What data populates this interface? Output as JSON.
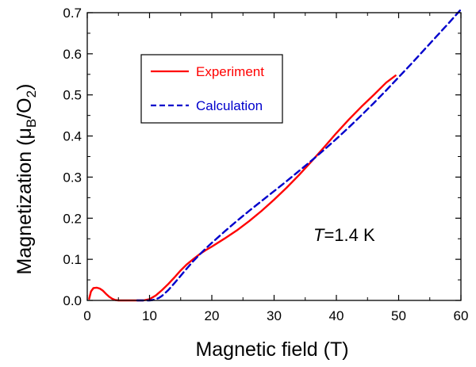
{
  "chart_data": {
    "type": "line",
    "xlabel": "Magnetic field (T)",
    "ylabel": {
      "main": "Magnetization (",
      "mu": "μ",
      "sub1": "B",
      "slash": "/O",
      "sub2": "2",
      "close": ")"
    },
    "xlim": [
      0,
      60
    ],
    "ylim": [
      0,
      0.7
    ],
    "xticks": [
      0,
      10,
      20,
      30,
      40,
      50,
      60
    ],
    "xtick_labels": [
      "0",
      "10",
      "20",
      "30",
      "40",
      "50",
      "60"
    ],
    "yticks": [
      0,
      0.1,
      0.2,
      0.3,
      0.4,
      0.5,
      0.6,
      0.7
    ],
    "ytick_labels": [
      "0.0",
      "0.1",
      "0.2",
      "0.3",
      "0.4",
      "0.5",
      "0.6",
      "0.7"
    ],
    "grid": false,
    "legend": {
      "placement": "upper-left",
      "entries": [
        {
          "name": "Experiment",
          "color": "#ff0000",
          "style": "solid"
        },
        {
          "name": "Calculation",
          "color": "#0000cc",
          "style": "dashed"
        }
      ]
    },
    "annotation": {
      "italic": "T",
      "rest": "=1.4 K"
    },
    "series": [
      {
        "name": "Experiment",
        "color": "#ff0000",
        "style": "solid",
        "x": [
          0.3,
          0.6,
          1.0,
          1.5,
          2.0,
          2.5,
          3.0,
          3.5,
          4.0,
          4.5,
          5.0,
          6.0,
          7.0,
          8.0,
          9.0,
          10.0,
          11.0,
          12.0,
          13.0,
          14.0,
          15.0,
          16.0,
          17.0,
          18.0,
          19.0,
          20.0,
          22.0,
          24.0,
          26.0,
          28.0,
          30.0,
          32.0,
          34.0,
          36.0,
          38.0,
          40.0,
          42.0,
          44.0,
          46.0,
          48.0,
          49.5
        ],
        "y": [
          0.004,
          0.022,
          0.03,
          0.031,
          0.029,
          0.024,
          0.016,
          0.009,
          0.004,
          0.001,
          0.0,
          0.0,
          0.0,
          0.0,
          0.0,
          0.003,
          0.012,
          0.025,
          0.04,
          0.056,
          0.073,
          0.088,
          0.1,
          0.112,
          0.122,
          0.131,
          0.15,
          0.17,
          0.193,
          0.218,
          0.245,
          0.274,
          0.305,
          0.338,
          0.372,
          0.407,
          0.44,
          0.471,
          0.5,
          0.53,
          0.547
        ]
      },
      {
        "name": "Calculation",
        "color": "#0000cc",
        "style": "dashed",
        "x": [
          8.0,
          9.0,
          10.0,
          10.5,
          11.0,
          11.5,
          12.0,
          13.0,
          14.0,
          15.0,
          16.0,
          17.0,
          18.0,
          19.0,
          20.0,
          22.0,
          24.0,
          26.0,
          28.0,
          30.0,
          32.0,
          34.0,
          36.0,
          38.0,
          40.0,
          42.0,
          44.0,
          46.0,
          48.0,
          50.0,
          52.0,
          54.0,
          56.0,
          58.0,
          60.0
        ],
        "y": [
          0.0,
          0.0,
          0.0,
          0.001,
          0.003,
          0.006,
          0.011,
          0.025,
          0.042,
          0.06,
          0.078,
          0.095,
          0.111,
          0.126,
          0.14,
          0.167,
          0.193,
          0.218,
          0.242,
          0.266,
          0.29,
          0.315,
          0.34,
          0.366,
          0.393,
          0.421,
          0.45,
          0.48,
          0.511,
          0.543,
          0.575,
          0.608,
          0.641,
          0.674,
          0.708
        ]
      }
    ]
  }
}
